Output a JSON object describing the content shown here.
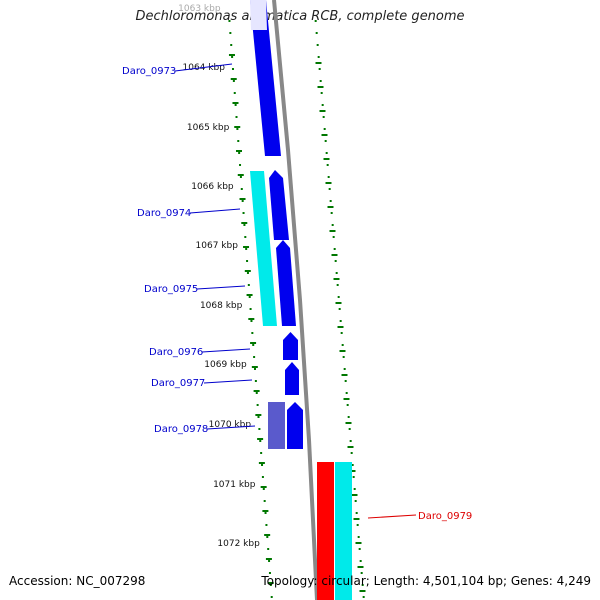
{
  "title": "Dechloromonas aromatica RCB, complete genome",
  "accession_label": "Accession: NC_007298",
  "topology_label": "Topology: circular; Length: 4,501,104 bp; Genes: 4,249",
  "colors": {
    "forward_cds": "#0000ee",
    "forward_cds_light": "#5a5acc",
    "cyan_feature": "#00eaea",
    "reverse_cds": "#ff0000",
    "backbone": "#888888",
    "tick": "#007700",
    "fwd_label": "#0000cc",
    "rev_label": "#dd0000"
  },
  "kbp_ticks": [
    "1063 kbp",
    "1064 kbp",
    "1065 kbp",
    "1066 kbp",
    "1067 kbp",
    "1068 kbp",
    "1069 kbp",
    "1070 kbp",
    "1071 kbp",
    "1072 kbp"
  ],
  "genes": [
    {
      "name": "Daro_0973",
      "strand": "forward"
    },
    {
      "name": "Daro_0974",
      "strand": "forward"
    },
    {
      "name": "Daro_0975",
      "strand": "forward"
    },
    {
      "name": "Daro_0976",
      "strand": "forward"
    },
    {
      "name": "Daro_0977",
      "strand": "forward"
    },
    {
      "name": "Daro_0978",
      "strand": "forward"
    },
    {
      "name": "Daro_0979",
      "strand": "reverse"
    }
  ]
}
